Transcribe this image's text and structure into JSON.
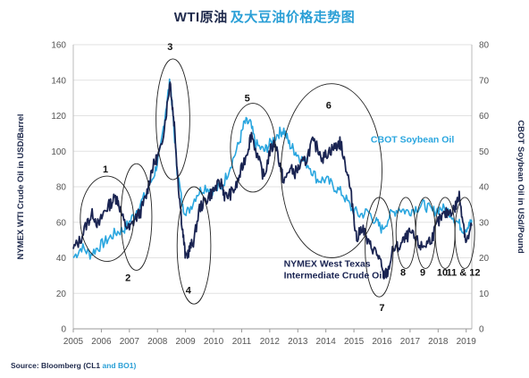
{
  "header": {
    "title_a": "WTI原油",
    "title_b": "及大豆油价格走势图"
  },
  "footer": {
    "source_prefix": "Source: Bloomberg (CL1",
    "source_and": "and BO1)"
  },
  "colors": {
    "wti": "#1a2452",
    "soy": "#2aa6df",
    "grid": "#e2e2e2",
    "circle": "#222222"
  },
  "chart_data": {
    "type": "line",
    "xlabel": "",
    "x_ticks": [
      "2005",
      "2006",
      "2007",
      "2008",
      "2009",
      "2010",
      "2011",
      "2012",
      "2013",
      "2014",
      "2015",
      "2016",
      "2017",
      "2018",
      "2019"
    ],
    "xlim": [
      2005,
      2019.2
    ],
    "ylabel_left": "NYMEX WTI Crude Oil in USD/Barrel",
    "ylabel_right": "CBOT Soybean Oil in USd/Pound",
    "ylim_left": [
      0,
      160
    ],
    "ylim_right": [
      0,
      80
    ],
    "yticks_left": [
      0,
      20,
      40,
      60,
      80,
      100,
      120,
      140,
      160
    ],
    "yticks_right": [
      0,
      10,
      20,
      30,
      40,
      50,
      60,
      70,
      80
    ],
    "grid": "horizontal",
    "series": [
      {
        "name": "NYMEX West Texas Intermediate Crude Oil",
        "label_line1": "NYMEX West Texas",
        "label_line2": "Intermediate Crude Oil",
        "axis": "left",
        "x": [
          2005.0,
          2005.25,
          2005.5,
          2005.7,
          2005.9,
          2006.1,
          2006.3,
          2006.5,
          2006.6,
          2006.8,
          2007.0,
          2007.2,
          2007.4,
          2007.6,
          2007.8,
          2007.95,
          2008.1,
          2008.3,
          2008.45,
          2008.5,
          2008.6,
          2008.75,
          2008.9,
          2009.0,
          2009.15,
          2009.3,
          2009.5,
          2009.7,
          2009.9,
          2010.1,
          2010.3,
          2010.4,
          2010.6,
          2010.8,
          2011.0,
          2011.2,
          2011.35,
          2011.6,
          2011.8,
          2012.0,
          2012.2,
          2012.4,
          2012.5,
          2012.7,
          2012.9,
          2013.1,
          2013.3,
          2013.5,
          2013.7,
          2013.9,
          2014.1,
          2014.3,
          2014.5,
          2014.6,
          2014.8,
          2014.95,
          2015.1,
          2015.3,
          2015.5,
          2015.7,
          2015.9,
          2016.05,
          2016.2,
          2016.4,
          2016.6,
          2016.8,
          2017.0,
          2017.2,
          2017.4,
          2017.6,
          2017.8,
          2018.0,
          2018.2,
          2018.4,
          2018.6,
          2018.75,
          2018.9,
          2019.0,
          2019.2
        ],
        "y": [
          45,
          50,
          60,
          65,
          58,
          66,
          70,
          74,
          72,
          60,
          56,
          62,
          66,
          75,
          90,
          95,
          100,
          120,
          140,
          130,
          115,
          80,
          55,
          40,
          45,
          50,
          68,
          72,
          76,
          80,
          82,
          74,
          76,
          80,
          90,
          100,
          110,
          95,
          85,
          100,
          105,
          90,
          82,
          90,
          88,
          92,
          95,
          105,
          102,
          96,
          100,
          102,
          105,
          100,
          85,
          70,
          50,
          58,
          48,
          45,
          40,
          30,
          32,
          45,
          46,
          50,
          54,
          50,
          46,
          48,
          52,
          60,
          64,
          66,
          68,
          75,
          60,
          48,
          58
        ]
      },
      {
        "name": "CBOT Soybean Oil",
        "label_line1": "CBOT Soybean Oil",
        "axis": "right",
        "x": [
          2005.0,
          2005.3,
          2005.6,
          2005.9,
          2006.2,
          2006.5,
          2006.8,
          2007.0,
          2007.3,
          2007.6,
          2007.9,
          2008.1,
          2008.3,
          2008.45,
          2008.55,
          2008.7,
          2008.9,
          2009.1,
          2009.4,
          2009.7,
          2010.0,
          2010.3,
          2010.6,
          2010.9,
          2011.1,
          2011.3,
          2011.5,
          2011.8,
          2012.0,
          2012.3,
          2012.5,
          2012.7,
          2012.9,
          2013.1,
          2013.4,
          2013.7,
          2014.0,
          2014.3,
          2014.6,
          2014.9,
          2015.2,
          2015.5,
          2015.8,
          2016.0,
          2016.3,
          2016.6,
          2016.9,
          2017.2,
          2017.5,
          2017.8,
          2018.1,
          2018.4,
          2018.7,
          2018.9,
          2019.1,
          2019.2
        ],
        "y": [
          20,
          23,
          21,
          23,
          25,
          27,
          28,
          30,
          34,
          38,
          44,
          50,
          62,
          70,
          60,
          45,
          34,
          33,
          38,
          40,
          39,
          40,
          46,
          52,
          58,
          58,
          52,
          50,
          52,
          55,
          56,
          52,
          50,
          48,
          46,
          42,
          42,
          40,
          38,
          34,
          32,
          33,
          30,
          28,
          32,
          34,
          33,
          34,
          35,
          33,
          34,
          33,
          30,
          28,
          29,
          30
        ]
      }
    ],
    "annotations": [
      {
        "label": "1",
        "x": 2006.15,
        "y": 88
      },
      {
        "label": "2",
        "x": 2006.95,
        "y": 27
      },
      {
        "label": "3",
        "x": 2008.45,
        "y": 157
      },
      {
        "label": "4",
        "x": 2009.1,
        "y": 20
      },
      {
        "label": "5",
        "x": 2011.2,
        "y": 128
      },
      {
        "label": "6",
        "x": 2014.1,
        "y": 124
      },
      {
        "label": "7",
        "x": 2016.0,
        "y": 10
      },
      {
        "label": "8",
        "x": 2016.75,
        "y": 30
      },
      {
        "label": "9",
        "x": 2017.45,
        "y": 30
      },
      {
        "label": "10",
        "x": 2018.15,
        "y": 30
      },
      {
        "label": "11 & 12",
        "x": 2018.9,
        "y": 30
      }
    ],
    "circles": [
      {
        "cx": 2006.2,
        "cy": 62,
        "rx": 0.95,
        "ry": 24
      },
      {
        "cx": 2007.25,
        "cy": 63,
        "rx": 0.55,
        "ry": 30
      },
      {
        "cx": 2008.55,
        "cy": 118,
        "rx": 0.6,
        "ry": 34
      },
      {
        "cx": 2009.3,
        "cy": 47,
        "rx": 0.6,
        "ry": 33
      },
      {
        "cx": 2011.4,
        "cy": 102,
        "rx": 0.8,
        "ry": 25
      },
      {
        "cx": 2014.2,
        "cy": 89,
        "rx": 1.8,
        "ry": 49
      },
      {
        "cx": 2015.9,
        "cy": 46,
        "rx": 0.5,
        "ry": 28
      },
      {
        "cx": 2016.85,
        "cy": 54,
        "rx": 0.35,
        "ry": 20
      },
      {
        "cx": 2017.55,
        "cy": 54,
        "rx": 0.35,
        "ry": 20
      },
      {
        "cx": 2018.25,
        "cy": 54,
        "rx": 0.35,
        "ry": 20
      },
      {
        "cx": 2018.95,
        "cy": 54,
        "rx": 0.35,
        "ry": 20
      }
    ],
    "series_labels": [
      {
        "series": 0,
        "x": 2012.5,
        "y": 35
      },
      {
        "series": 1,
        "x": 2015.6,
        "y": 105
      }
    ]
  }
}
